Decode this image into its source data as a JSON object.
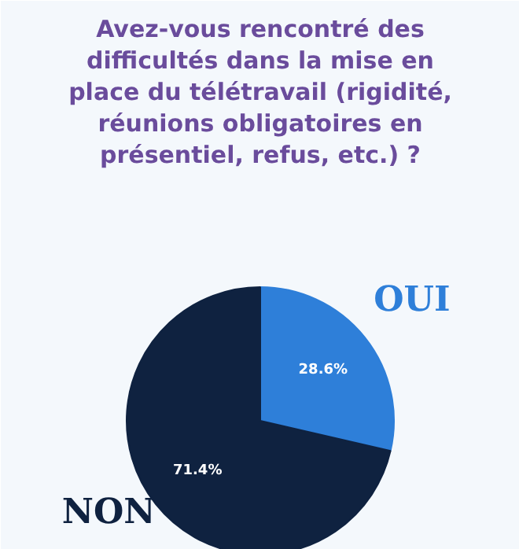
{
  "chart_data": {
    "type": "pie",
    "title": "Avez-vous rencontré des difficultés dans la mise en place du télétravail (rigidité, réunions obligatoires en présentiel, refus, etc.) ?",
    "categories": [
      "OUI",
      "NON"
    ],
    "values": [
      28.6,
      71.4
    ],
    "colors": [
      "#2e7fd9",
      "#0f2240"
    ],
    "value_labels": [
      "28.6%",
      "71.4%"
    ]
  }
}
